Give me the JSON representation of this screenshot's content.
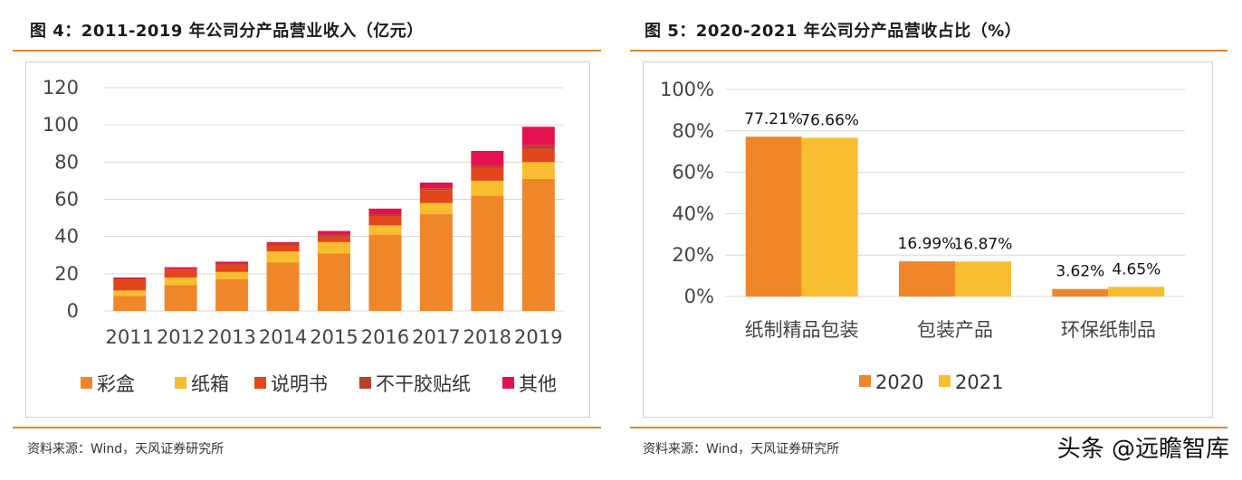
{
  "left_panel": {
    "title": "图 4：2011-2019 年公司分产品营业收入（亿元）",
    "source": "资料来源：Wind，天风证券研究所"
  },
  "right_panel": {
    "title": "图 5：2020-2021 年公司分产品营收占比（%）",
    "source": "资料来源：Wind，天风证券研究所"
  },
  "watermark": "头条 @远瞻智库",
  "chart_data": [
    {
      "type": "bar",
      "stacked": true,
      "title": "",
      "categories": [
        "2011",
        "2012",
        "2013",
        "2014",
        "2015",
        "2016",
        "2017",
        "2018",
        "2019"
      ],
      "ylim": [
        0,
        120
      ],
      "yticks": [
        "0",
        "20",
        "40",
        "60",
        "80",
        "100",
        "120"
      ],
      "grid": true,
      "legend_position": "bottom",
      "series": [
        {
          "name": "彩盒",
          "color": "#f0862a",
          "values": [
            8,
            14,
            17,
            26,
            31,
            41,
            52,
            62,
            71
          ]
        },
        {
          "name": "纸箱",
          "color": "#f9be2f",
          "values": [
            3,
            4,
            4,
            6,
            6,
            5,
            6,
            8,
            9
          ]
        },
        {
          "name": "说明书",
          "color": "#e2461d",
          "values": [
            6,
            4,
            4,
            3,
            3,
            5,
            7,
            7,
            7
          ]
        },
        {
          "name": "不干胶贴纸",
          "color": "#b8402c",
          "values": [
            0.5,
            0.5,
            0.5,
            1,
            1,
            1,
            1,
            1,
            2
          ]
        },
        {
          "name": "其他",
          "color": "#e5114f",
          "values": [
            0.5,
            1,
            1,
            1,
            2,
            3,
            3,
            8,
            10
          ]
        }
      ]
    },
    {
      "type": "bar",
      "title": "",
      "categories": [
        "纸制精品包装",
        "包装产品",
        "环保纸制品"
      ],
      "ylim": [
        0,
        100
      ],
      "yticks": [
        "0%",
        "20%",
        "40%",
        "60%",
        "80%",
        "100%"
      ],
      "grid": true,
      "legend_position": "bottom",
      "series": [
        {
          "name": "2020",
          "color": "#f0862a",
          "values": [
            77.21,
            16.99,
            3.62
          ],
          "labels": [
            "77.21%",
            "16.99%",
            "3.62%"
          ]
        },
        {
          "name": "2021",
          "color": "#f9be2f",
          "values": [
            76.66,
            16.87,
            4.65
          ],
          "labels": [
            "76.66%",
            "16.87%",
            "4.65%"
          ]
        }
      ]
    }
  ]
}
